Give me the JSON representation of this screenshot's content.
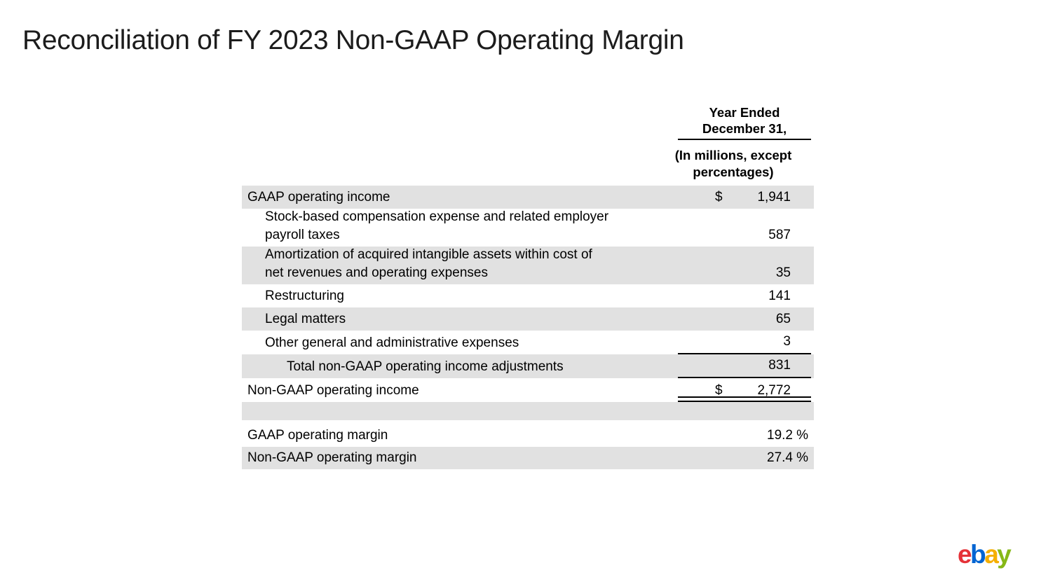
{
  "page": {
    "title": "Reconciliation of FY 2023 Non-GAAP Operating Margin"
  },
  "table": {
    "header": {
      "period_line1": "Year Ended",
      "period_line2": "December 31,",
      "units": "(In millions, except percentages)"
    },
    "rows": [
      {
        "label": "GAAP operating income",
        "currency": "$",
        "value": "1,941",
        "indent": 0,
        "shaded": true
      },
      {
        "label": "Stock-based compensation expense and related employer\npayroll taxes",
        "value": "587",
        "indent": 1,
        "shaded": false,
        "lines": 2
      },
      {
        "label": "Amortization of acquired intangible assets within cost of\nnet revenues and operating expenses",
        "value": "35",
        "indent": 1,
        "shaded": true,
        "lines": 2
      },
      {
        "label": "Restructuring",
        "value": "141",
        "indent": 1,
        "shaded": false
      },
      {
        "label": "Legal matters",
        "value": "65",
        "indent": 1,
        "shaded": true
      },
      {
        "label": "Other general and administrative expenses",
        "value": "3",
        "indent": 1,
        "shaded": false,
        "rule_below": "single"
      },
      {
        "label": "Total non-GAAP operating income adjustments",
        "value": "831",
        "indent": 2,
        "shaded": true,
        "rule_below": "single"
      },
      {
        "label": "Non-GAAP operating income",
        "currency": "$",
        "value": "2,772",
        "indent": 0,
        "shaded": false,
        "rule_below": "double"
      },
      {
        "label": "",
        "value": "",
        "shaded": true,
        "spacer": true
      },
      {
        "label": "GAAP operating margin",
        "value": "19.2",
        "suffix": "%",
        "indent": 0,
        "shaded": false
      },
      {
        "label": "Non-GAAP operating margin",
        "value": "27.4",
        "suffix": "%",
        "indent": 0,
        "shaded": true
      }
    ]
  },
  "footer": {
    "logo_letters": [
      {
        "char": "e",
        "color": "#E53238"
      },
      {
        "char": "b",
        "color": "#0064D2"
      },
      {
        "char": "a",
        "color": "#F5AF02"
      },
      {
        "char": "y",
        "color": "#86B817"
      }
    ]
  },
  "colors": {
    "row_shade": "#E1E1E1",
    "text": "#000000",
    "title": "#1C1C1C",
    "rule": "#000000"
  }
}
